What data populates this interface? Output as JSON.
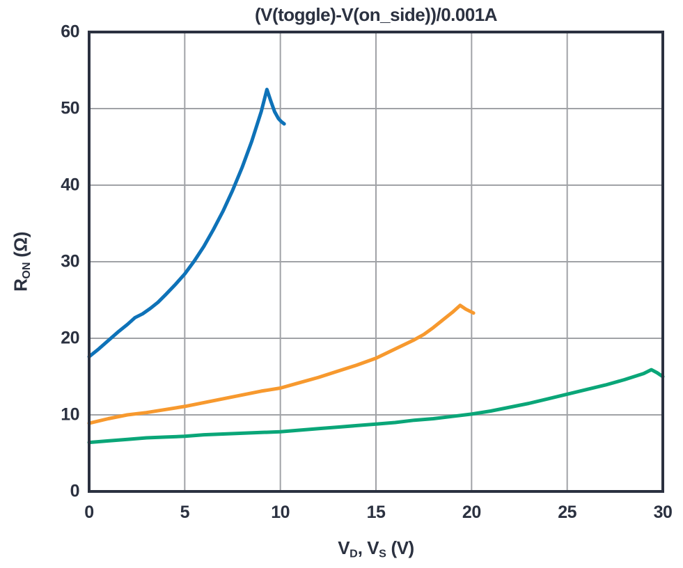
{
  "chart_data": {
    "type": "line",
    "title": "(V(toggle)-V(on_side))/0.001A",
    "xlabel": "V_D, V_S (V)",
    "ylabel": "R_ON (Ohm)",
    "xlim": [
      0,
      30
    ],
    "ylim": [
      0,
      60
    ],
    "x_ticks": [
      0,
      5,
      10,
      15,
      20,
      25,
      30
    ],
    "y_ticks": [
      0,
      10,
      20,
      30,
      40,
      50,
      60
    ],
    "grid": true,
    "legend_position": "none",
    "frame_color": "#2b3140",
    "grid_color": "#a0a2a6",
    "series": [
      {
        "name": "blue",
        "color": "#0e72b8",
        "points": [
          [
            0,
            17.6
          ],
          [
            0.5,
            18.6
          ],
          [
            1,
            19.7
          ],
          [
            1.5,
            20.8
          ],
          [
            2,
            21.8
          ],
          [
            2.4,
            22.7
          ],
          [
            2.8,
            23.2
          ],
          [
            3.2,
            23.9
          ],
          [
            3.6,
            24.7
          ],
          [
            4,
            25.7
          ],
          [
            4.5,
            27.0
          ],
          [
            5,
            28.4
          ],
          [
            5.5,
            30.1
          ],
          [
            6,
            32.0
          ],
          [
            6.5,
            34.2
          ],
          [
            7,
            36.6
          ],
          [
            7.5,
            39.3
          ],
          [
            8,
            42.3
          ],
          [
            8.5,
            45.7
          ],
          [
            9,
            49.6
          ],
          [
            9.3,
            52.5
          ],
          [
            9.5,
            51.0
          ],
          [
            9.7,
            49.6
          ],
          [
            9.9,
            48.7
          ],
          [
            10.05,
            48.3
          ],
          [
            10.2,
            48.0
          ]
        ]
      },
      {
        "name": "orange",
        "color": "#f7992e",
        "points": [
          [
            0,
            8.9
          ],
          [
            1,
            9.5
          ],
          [
            2,
            10.0
          ],
          [
            3,
            10.3
          ],
          [
            4,
            10.7
          ],
          [
            5,
            11.1
          ],
          [
            6,
            11.6
          ],
          [
            7,
            12.1
          ],
          [
            8,
            12.6
          ],
          [
            9,
            13.1
          ],
          [
            10,
            13.5
          ],
          [
            11,
            14.2
          ],
          [
            12,
            14.9
          ],
          [
            13,
            15.7
          ],
          [
            14,
            16.5
          ],
          [
            15,
            17.4
          ],
          [
            16,
            18.6
          ],
          [
            17,
            19.8
          ],
          [
            17.5,
            20.5
          ],
          [
            18,
            21.4
          ],
          [
            18.5,
            22.4
          ],
          [
            19,
            23.4
          ],
          [
            19.4,
            24.3
          ],
          [
            19.7,
            23.8
          ],
          [
            20.1,
            23.3
          ]
        ]
      },
      {
        "name": "green",
        "color": "#0aa678",
        "points": [
          [
            0,
            6.4
          ],
          [
            1,
            6.6
          ],
          [
            2,
            6.8
          ],
          [
            3,
            7.0
          ],
          [
            4,
            7.1
          ],
          [
            5,
            7.2
          ],
          [
            6,
            7.4
          ],
          [
            7,
            7.5
          ],
          [
            8,
            7.6
          ],
          [
            9,
            7.7
          ],
          [
            10,
            7.8
          ],
          [
            11,
            8.0
          ],
          [
            12,
            8.2
          ],
          [
            13,
            8.4
          ],
          [
            14,
            8.6
          ],
          [
            15,
            8.8
          ],
          [
            16,
            9.0
          ],
          [
            17,
            9.3
          ],
          [
            18,
            9.5
          ],
          [
            19,
            9.8
          ],
          [
            20,
            10.1
          ],
          [
            21,
            10.5
          ],
          [
            22,
            11.0
          ],
          [
            23,
            11.5
          ],
          [
            24,
            12.1
          ],
          [
            25,
            12.7
          ],
          [
            26,
            13.3
          ],
          [
            27,
            13.9
          ],
          [
            28,
            14.6
          ],
          [
            29,
            15.4
          ],
          [
            29.4,
            15.9
          ],
          [
            29.7,
            15.5
          ],
          [
            30,
            15.0
          ]
        ]
      }
    ]
  },
  "labels": {
    "y_main": "R",
    "y_sub": "ON",
    "y_unit": " (Ω)",
    "x_p1": "V",
    "x_s1": "D",
    "x_p2": ", V",
    "x_s2": "S",
    "x_p3": " (V)"
  }
}
